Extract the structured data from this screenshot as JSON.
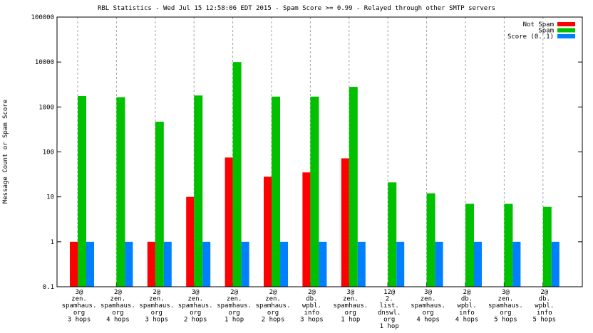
{
  "chart_data": {
    "type": "bar",
    "title": "RBL Statistics - Wed Jul 15 12:58:06 EDT 2015 - Spam Score >= 0.99 - Relayed through other SMTP servers",
    "xlabel": "",
    "ylabel": "Message Count or Spam Score",
    "yscale": "log",
    "ylim": [
      0.1,
      100000
    ],
    "yticks": [
      "0.1",
      "1",
      "10",
      "100",
      "1000",
      "10000",
      "100000"
    ],
    "grid": true,
    "legend_position": "top-right",
    "categories": [
      [
        "3@",
        "zen.",
        "spamhaus.",
        "org",
        "3 hops"
      ],
      [
        "2@",
        "zen.",
        "spamhaus.",
        "org",
        "4 hops"
      ],
      [
        "2@",
        "zen.",
        "spamhaus.",
        "org",
        "3 hops"
      ],
      [
        "3@",
        "zen.",
        "spamhaus.",
        "org",
        "2 hops"
      ],
      [
        "2@",
        "zen.",
        "spamhaus.",
        "org",
        "1 hop"
      ],
      [
        "2@",
        "zen.",
        "spamhaus.",
        "org",
        "2 hops"
      ],
      [
        "2@",
        "db.",
        "wpbl.",
        "info",
        "3 hops"
      ],
      [
        "3@",
        "zen.",
        "spamhaus.",
        "org",
        "1 hop"
      ],
      [
        "12@",
        "2.",
        "list.",
        "dnswl.",
        "org",
        "1 hop"
      ],
      [
        "3@",
        "zen.",
        "spamhaus.",
        "org",
        "4 hops"
      ],
      [
        "2@",
        "db.",
        "wpbl.",
        "info",
        "4 hops"
      ],
      [
        "3@",
        "zen.",
        "spamhaus.",
        "org",
        "5 hops"
      ],
      [
        "2@",
        "db.",
        "wpbl.",
        "info",
        "5 hops"
      ]
    ],
    "series": [
      {
        "name": "Not Spam",
        "color": "#ff0000",
        "values": [
          1,
          null,
          1,
          10,
          75,
          28,
          35,
          72,
          null,
          null,
          null,
          null,
          null
        ]
      },
      {
        "name": "Spam",
        "color": "#00c000",
        "values": [
          1750,
          1650,
          470,
          1800,
          10000,
          1700,
          1700,
          2800,
          21,
          12,
          7,
          7,
          6
        ]
      },
      {
        "name": "Score (0..1)",
        "color": "#0080ff",
        "values": [
          1,
          1,
          1,
          1,
          1,
          1,
          1,
          1,
          1,
          1,
          1,
          1,
          1
        ]
      }
    ]
  }
}
